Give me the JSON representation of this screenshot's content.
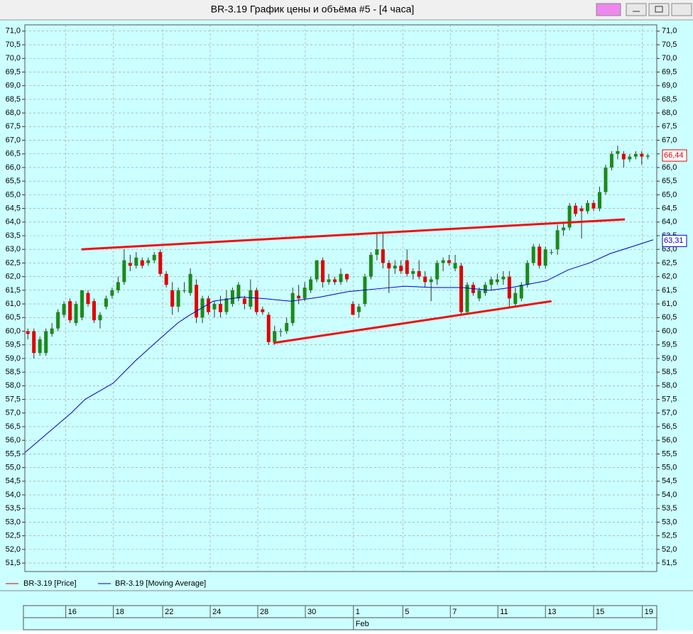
{
  "chart_data": {
    "type": "candlestick",
    "title": "BR-3.19 График цены и объёма #5 - [4 часа]",
    "xlim": [
      -0.5,
      104.5
    ],
    "ylim": [
      51.19,
      71.23
    ],
    "grid": true,
    "yticks": [
      {
        "value": 71,
        "label": "71,0"
      },
      {
        "value": 70.5,
        "label": "70,5"
      },
      {
        "value": 70,
        "label": "70,0"
      },
      {
        "value": 69.5,
        "label": "69,5"
      },
      {
        "value": 69,
        "label": "69,0"
      },
      {
        "value": 68.5,
        "label": "68,5"
      },
      {
        "value": 68,
        "label": "68,0"
      },
      {
        "value": 67.5,
        "label": "67,5"
      },
      {
        "value": 67,
        "label": "67,0"
      },
      {
        "value": 66.5,
        "label": "66,5"
      },
      {
        "value": 66,
        "label": "66,0"
      },
      {
        "value": 65.5,
        "label": "65,5"
      },
      {
        "value": 65,
        "label": "65,0"
      },
      {
        "value": 64.5,
        "label": "64,5"
      },
      {
        "value": 64,
        "label": "64,0"
      },
      {
        "value": 63.5,
        "label": "63,5"
      },
      {
        "value": 63,
        "label": "63,0"
      },
      {
        "value": 62.5,
        "label": "62,5"
      },
      {
        "value": 62,
        "label": "62,0"
      },
      {
        "value": 61.5,
        "label": "61,5"
      },
      {
        "value": 61,
        "label": "61,0"
      },
      {
        "value": 60.5,
        "label": "60,5"
      },
      {
        "value": 60,
        "label": "60,0"
      },
      {
        "value": 59.5,
        "label": "59,5"
      },
      {
        "value": 59,
        "label": "59,0"
      },
      {
        "value": 58.5,
        "label": "58,5"
      },
      {
        "value": 58,
        "label": "58,0"
      },
      {
        "value": 57.5,
        "label": "57,5"
      },
      {
        "value": 57,
        "label": "57,0"
      },
      {
        "value": 56.5,
        "label": "56,5"
      },
      {
        "value": 56,
        "label": "56,0"
      },
      {
        "value": 55.5,
        "label": "55,5"
      },
      {
        "value": 55,
        "label": "55,0"
      },
      {
        "value": 54.5,
        "label": "54,5"
      },
      {
        "value": 54,
        "label": "54,0"
      },
      {
        "value": 53.5,
        "label": "53,5"
      },
      {
        "value": 53,
        "label": "53,0"
      },
      {
        "value": 52.5,
        "label": "52,5"
      },
      {
        "value": 52,
        "label": "52,0"
      },
      {
        "value": 51.5,
        "label": "51,5"
      }
    ],
    "xticks": [
      {
        "value": 6.3,
        "label": "16"
      },
      {
        "value": 14.2,
        "label": "18"
      },
      {
        "value": 22.4,
        "label": "22"
      },
      {
        "value": 30.3,
        "label": "24"
      },
      {
        "value": 38.2,
        "label": "28"
      },
      {
        "value": 46.1,
        "label": "30"
      },
      {
        "value": 54.1,
        "label": "1"
      },
      {
        "value": 62.3,
        "label": "5"
      },
      {
        "value": 70.2,
        "label": "7"
      },
      {
        "value": 78.1,
        "label": "11"
      },
      {
        "value": 86,
        "label": "13"
      },
      {
        "value": 94,
        "label": "15"
      },
      {
        "value": 102.1,
        "label": "19"
      }
    ],
    "xsublabels": [
      {
        "value": 54.1,
        "label": "Feb"
      }
    ],
    "series": [
      {
        "name": "BR-3.19 [Price]",
        "color": "#e00000",
        "up_color": "#1b8a1b",
        "down_color": "#e00000",
        "open": [
          60.0,
          60.0,
          59.2,
          59.2,
          59.9,
          60.1,
          60.6,
          61.1,
          60.3,
          60.5,
          61.4,
          61.1,
          60.4,
          60.9,
          61.3,
          61.5,
          61.8,
          62.5,
          62.4,
          62.6,
          62.5,
          62.6,
          62.9,
          62.1,
          61.5,
          60.9,
          61.5,
          61.4,
          61.7,
          60.5,
          61.2,
          60.8,
          61.0,
          60.7,
          61.0,
          61.2,
          61.2,
          60.9,
          61.5,
          60.8,
          60.6,
          59.6,
          60.0,
          60.0,
          60.3,
          61.3,
          61.2,
          61.5,
          61.9,
          62.6,
          61.8,
          61.9,
          61.8,
          62.1,
          61.0,
          60.7,
          61.0,
          62.0,
          62.8,
          63.0,
          62.5,
          62.3,
          62.4,
          62.6,
          62.1,
          62.2,
          62.0,
          61.8,
          61.9,
          62.5,
          62.6,
          62.3,
          62.4,
          60.7,
          61.7,
          61.2,
          61.4,
          61.7,
          61.8,
          61.9,
          62.0,
          61.0,
          61.2,
          61.7,
          62.5,
          63.1,
          62.4,
          62.9,
          63.0,
          63.7,
          63.8,
          64.6,
          64.5,
          64.4,
          64.7,
          64.5,
          65.1,
          66.0,
          66.5,
          66.5,
          66.3,
          66.4,
          66.5,
          66.4
        ],
        "high": [
          60.1,
          60.1,
          59.8,
          60.1,
          60.3,
          60.8,
          61.1,
          61.2,
          61.1,
          61.5,
          61.5,
          61.2,
          60.7,
          61.3,
          61.6,
          62.0,
          63.0,
          62.8,
          62.9,
          62.7,
          62.7,
          62.9,
          63.0,
          62.2,
          61.8,
          61.6,
          61.8,
          62.3,
          61.9,
          61.3,
          61.3,
          61.1,
          61.3,
          61.5,
          61.6,
          61.8,
          61.3,
          61.9,
          61.6,
          60.9,
          60.7,
          60.2,
          60.1,
          60.5,
          61.6,
          61.7,
          61.8,
          62.0,
          62.6,
          62.7,
          62.1,
          62.0,
          62.3,
          62.1,
          61.1,
          61.0,
          62.1,
          62.9,
          63.6,
          63.6,
          62.6,
          62.6,
          62.6,
          63.0,
          62.3,
          62.6,
          62.2,
          62.0,
          62.6,
          62.7,
          62.8,
          62.8,
          62.5,
          61.8,
          61.8,
          61.6,
          61.8,
          62.0,
          62.1,
          62.2,
          62.2,
          61.6,
          61.8,
          62.6,
          63.2,
          63.2,
          63.1,
          63.0,
          63.9,
          64.0,
          64.7,
          64.7,
          64.6,
          64.8,
          64.8,
          65.3,
          66.1,
          66.6,
          66.8,
          66.6,
          66.5,
          66.6,
          66.6,
          66.5
        ],
        "low": [
          59.7,
          59.0,
          59.1,
          59.1,
          59.8,
          60.0,
          60.5,
          60.3,
          60.2,
          60.4,
          60.9,
          60.3,
          60.1,
          60.8,
          61.2,
          61.4,
          61.7,
          62.2,
          62.3,
          62.3,
          62.4,
          62.5,
          62.0,
          61.6,
          60.6,
          60.7,
          61.4,
          61.3,
          60.3,
          60.3,
          60.6,
          60.5,
          60.5,
          60.6,
          60.9,
          61.1,
          60.8,
          60.8,
          60.6,
          60.6,
          59.5,
          59.5,
          59.8,
          59.9,
          60.2,
          61.0,
          61.1,
          61.4,
          61.8,
          61.6,
          61.7,
          61.7,
          61.7,
          61.8,
          60.6,
          60.5,
          60.9,
          61.9,
          62.6,
          62.3,
          61.4,
          62.1,
          62.1,
          62.0,
          61.9,
          61.9,
          61.6,
          61.1,
          61.7,
          62.2,
          62.4,
          62.2,
          60.6,
          60.6,
          61.3,
          61.1,
          61.3,
          61.5,
          61.7,
          61.7,
          60.9,
          60.9,
          61.1,
          61.6,
          62.4,
          62.3,
          62.3,
          62.8,
          62.8,
          63.5,
          63.7,
          64.2,
          63.4,
          64.3,
          64.4,
          64.4,
          65.0,
          65.9,
          66.3,
          66.0,
          66.2,
          66.3,
          66.1,
          66.3
        ],
        "close": [
          59.9,
          59.2,
          59.7,
          60.0,
          60.1,
          60.7,
          61.0,
          60.4,
          61.0,
          61.5,
          61.0,
          60.4,
          60.6,
          61.2,
          61.5,
          61.8,
          62.6,
          62.4,
          62.7,
          62.4,
          62.6,
          62.8,
          62.1,
          61.7,
          60.9,
          61.5,
          61.5,
          62.1,
          60.5,
          61.2,
          60.7,
          61.0,
          60.7,
          61.2,
          61.5,
          61.7,
          61.0,
          61.5,
          60.7,
          60.7,
          59.6,
          60.0,
          60.0,
          60.3,
          61.4,
          61.2,
          61.6,
          61.9,
          62.6,
          61.8,
          61.9,
          61.8,
          62.1,
          61.9,
          60.6,
          60.9,
          62.0,
          62.8,
          63.0,
          62.5,
          62.3,
          62.4,
          62.2,
          62.1,
          62.2,
          62.0,
          61.8,
          61.9,
          62.5,
          62.6,
          62.5,
          62.5,
          60.7,
          61.7,
          61.4,
          61.5,
          61.7,
          61.9,
          61.9,
          62.0,
          61.2,
          61.4,
          61.7,
          62.5,
          63.1,
          62.4,
          63.0,
          62.9,
          63.7,
          63.8,
          64.6,
          64.3,
          64.4,
          64.7,
          64.5,
          65.1,
          66.0,
          66.5,
          66.6,
          66.3,
          66.4,
          66.5,
          66.4,
          66.44
        ]
      },
      {
        "name": "BR-3.19 [Moving Average]",
        "color": "#0000cc",
        "x": [
          -0.5,
          7.2,
          9.5,
          14.2,
          17.8,
          21.3,
          24.9,
          26.6,
          30.8,
          35.5,
          39.0,
          43.7,
          48.5,
          53.2,
          57.9,
          62.6,
          67.3,
          72.1,
          76.8,
          80.3,
          86.2,
          89.8,
          93.3,
          96.8,
          100.4,
          103.9
        ],
        "values": [
          55.55,
          57.0,
          57.5,
          58.1,
          58.9,
          59.6,
          60.3,
          60.55,
          61.1,
          61.25,
          61.2,
          61.1,
          61.25,
          61.45,
          61.55,
          61.65,
          61.6,
          61.6,
          61.5,
          61.6,
          61.85,
          62.25,
          62.5,
          62.85,
          63.1,
          63.35
        ]
      }
    ],
    "trendlines": [
      {
        "color": "#ee1111",
        "x": [
          8.9,
          99.2
        ],
        "values": [
          63.0,
          64.1
        ]
      },
      {
        "color": "#ee1111",
        "x": [
          40.8,
          87.0
        ],
        "values": [
          59.57,
          61.1
        ]
      }
    ],
    "last_price": {
      "value": 66.44,
      "label": "66,44",
      "color": "#e00000"
    },
    "last_ma": {
      "value": 63.31,
      "label": "63,31",
      "color": "#0000cc"
    }
  }
}
